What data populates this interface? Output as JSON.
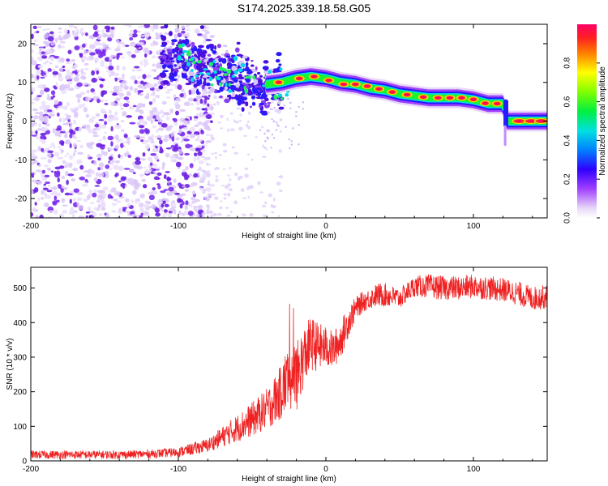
{
  "title": "S174.2025.339.18.58.G05",
  "colors": {
    "snr_line": "#ee2222",
    "scatter": "#7a2ee0",
    "axis": "#000000"
  },
  "chart_data": [
    {
      "type": "heatmap",
      "title": "S174.2025.339.18.58.G05",
      "xlabel": "Height of straight line (km)",
      "ylabel": "Frequency (Hz)",
      "xlim": [
        -200,
        150
      ],
      "ylim": [
        -25,
        25
      ],
      "x_ticks": [
        -200,
        -100,
        0,
        100
      ],
      "y_ticks": [
        -20,
        -10,
        0,
        10,
        20
      ],
      "colorbar": {
        "label": "Normalized spectral amplitude",
        "range": [
          0,
          1
        ],
        "ticks": [
          "0.0",
          "0.2",
          "0.4",
          "0.6",
          "0.8"
        ],
        "colormap": "rainbow (white-violet-blue-cyan-green-yellow-red)"
      },
      "ridge": {
        "x": [
          -110,
          -100,
          -90,
          -80,
          -70,
          -60,
          -50,
          -40,
          -30,
          -20,
          -10,
          0,
          10,
          20,
          30,
          40,
          50,
          60,
          70,
          80,
          90,
          100,
          110,
          120,
          122,
          130,
          140,
          150
        ],
        "y": [
          16,
          16,
          15,
          13.5,
          12,
          11,
          10,
          9.5,
          10,
          11,
          11.5,
          11,
          10,
          9.5,
          8.5,
          8,
          7,
          6.5,
          6,
          6,
          6,
          5.5,
          4.5,
          4.5,
          0,
          0,
          0,
          0
        ],
        "amplitude": [
          0.3,
          0.35,
          0.35,
          0.35,
          0.35,
          0.35,
          0.4,
          0.45,
          0.6,
          0.7,
          0.75,
          0.75,
          0.8,
          0.8,
          0.8,
          0.8,
          0.85,
          0.85,
          0.85,
          0.85,
          0.85,
          0.85,
          0.85,
          0.7,
          0.6,
          0.8,
          0.9,
          0.9
        ]
      },
      "noise_region": {
        "x_start": -200,
        "x_end": -85,
        "y_range": [
          -25,
          25
        ],
        "amplitude": 0.15
      }
    },
    {
      "type": "line",
      "xlabel": "Height of straight line (km)",
      "ylabel": "SNR (10 * v/v)",
      "xlim": [
        -200,
        150
      ],
      "ylim": [
        0,
        560
      ],
      "x_ticks": [
        -200,
        -100,
        0,
        100
      ],
      "y_ticks": [
        0,
        100,
        200,
        300,
        400,
        500
      ],
      "series": [
        {
          "name": "SNR",
          "x": [
            -200,
            -180,
            -160,
            -140,
            -120,
            -100,
            -90,
            -80,
            -70,
            -60,
            -50,
            -40,
            -30,
            -25,
            -20,
            -15,
            -10,
            -5,
            0,
            5,
            10,
            15,
            20,
            25,
            30,
            35,
            40,
            50,
            60,
            70,
            80,
            90,
            100,
            110,
            120,
            130,
            140,
            150
          ],
          "mean": [
            18,
            18,
            18,
            18,
            20,
            25,
            35,
            45,
            70,
            95,
            120,
            150,
            200,
            250,
            240,
            300,
            340,
            330,
            330,
            320,
            350,
            400,
            440,
            460,
            470,
            480,
            480,
            470,
            505,
            505,
            500,
            500,
            505,
            500,
            495,
            485,
            470,
            475
          ],
          "spread": [
            12,
            12,
            12,
            12,
            12,
            14,
            18,
            20,
            30,
            40,
            50,
            60,
            80,
            100,
            100,
            90,
            80,
            70,
            60,
            55,
            55,
            45,
            35,
            30,
            30,
            35,
            35,
            30,
            30,
            35,
            35,
            35,
            35,
            35,
            35,
            35,
            35,
            35
          ]
        }
      ]
    }
  ]
}
